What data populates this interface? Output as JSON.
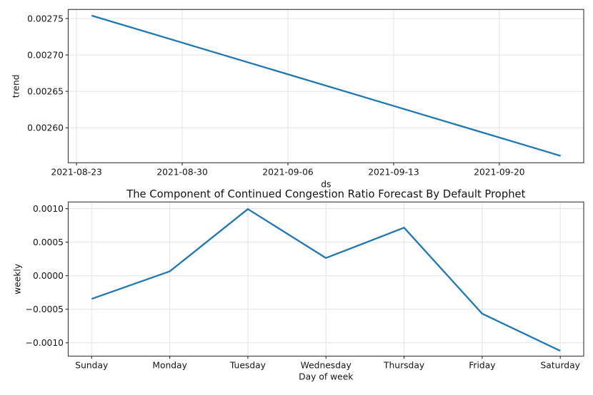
{
  "figure": {
    "background_color": "#ffffff",
    "line_color": "#1f77b4",
    "grid_color": "#e4e4e4",
    "spine_color": "#454545",
    "tick_color": "#2b2b2b",
    "text_color": "#141414"
  },
  "chart_data": [
    {
      "type": "line",
      "name": "trend-component",
      "title": "",
      "xlabel": "ds",
      "ylabel": "trend",
      "grid": true,
      "legend": "none",
      "x_unit": "days since 2021-08-23",
      "xlim": [
        -0.55,
        33.59
      ],
      "ylim": [
        0.002552,
        0.0027624
      ],
      "xticks": [
        {
          "pos": 0,
          "label": "2021-08-23"
        },
        {
          "pos": 7,
          "label": "2021-08-30"
        },
        {
          "pos": 14,
          "label": "2021-09-06"
        },
        {
          "pos": 21,
          "label": "2021-09-13"
        },
        {
          "pos": 28,
          "label": "2021-09-20"
        }
      ],
      "yticks": [
        {
          "pos": 0.00275,
          "label": "0.00275"
        },
        {
          "pos": 0.0027,
          "label": "0.00270"
        },
        {
          "pos": 0.00265,
          "label": "0.00265"
        },
        {
          "pos": 0.0026,
          "label": "0.00260"
        }
      ],
      "series": [
        {
          "name": "trend",
          "x": [
            1.0,
            32.06
          ],
          "y": [
            0.002754,
            0.0025615
          ]
        }
      ]
    },
    {
      "type": "line",
      "name": "weekly-component",
      "title": "The Component of Continued Congestion Ratio Forecast By Default Prophet",
      "xlabel": "Day of week",
      "ylabel": "weekly",
      "grid": true,
      "legend": "none",
      "categories": [
        "Sunday",
        "Monday",
        "Tuesday",
        "Wednesday",
        "Thursday",
        "Friday",
        "Saturday"
      ],
      "values": [
        -0.000345,
        6.5e-05,
        0.000994,
        0.000264,
        0.000716,
        -0.000566,
        -0.00112
      ],
      "xlim": [
        -0.3,
        6.3
      ],
      "ylim": [
        -0.001199,
        0.001099
      ],
      "xticks": [
        {
          "pos": 0,
          "label": "Sunday"
        },
        {
          "pos": 1,
          "label": "Monday"
        },
        {
          "pos": 2,
          "label": "Tuesday"
        },
        {
          "pos": 3,
          "label": "Wednesday"
        },
        {
          "pos": 4,
          "label": "Thursday"
        },
        {
          "pos": 5,
          "label": "Friday"
        },
        {
          "pos": 6,
          "label": "Saturday"
        }
      ],
      "yticks": [
        {
          "pos": 0.001,
          "label": "0.0010"
        },
        {
          "pos": 0.0005,
          "label": "0.0005"
        },
        {
          "pos": 0.0,
          "label": "0.0000"
        },
        {
          "pos": -0.0005,
          "label": "−0.0005"
        },
        {
          "pos": -0.001,
          "label": "−0.0010"
        }
      ],
      "series": [
        {
          "name": "weekly",
          "x": [
            0,
            1,
            2,
            3,
            4,
            5,
            6
          ],
          "y": [
            -0.000345,
            6.5e-05,
            0.000994,
            0.000264,
            0.000716,
            -0.000566,
            -0.00112
          ]
        }
      ]
    }
  ]
}
